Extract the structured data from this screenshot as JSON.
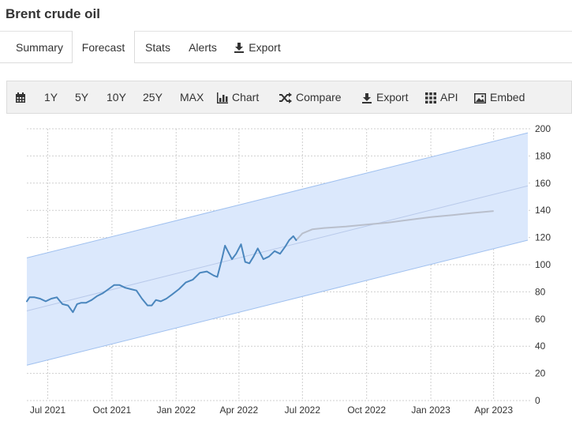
{
  "title": "Brent crude oil",
  "tabs": [
    {
      "label": "Summary",
      "active": false
    },
    {
      "label": "Forecast",
      "active": true
    },
    {
      "label": "Stats",
      "active": false
    },
    {
      "label": "Alerts",
      "active": false
    },
    {
      "label": "Export",
      "active": false,
      "icon": "download-icon"
    }
  ],
  "toolbar": {
    "calendar_icon": "calendar-icon",
    "ranges": [
      "1Y",
      "5Y",
      "10Y",
      "25Y",
      "MAX"
    ],
    "chart_label": "Chart",
    "compare_label": "Compare",
    "export_label": "Export",
    "api_label": "API",
    "embed_label": "Embed"
  },
  "colors": {
    "band": "#dbe8fc",
    "band_edge": "#9fc0ef",
    "history_line": "#4a86bd",
    "forecast_line": "#b9bfcc",
    "trend_line": "#b8c9ea",
    "grid": "#cfcfcf"
  },
  "chart_data": {
    "type": "line",
    "x_ticks": [
      "Jul 2021",
      "Oct 2021",
      "Jan 2022",
      "Apr 2022",
      "Jul 2022",
      "Oct 2022",
      "Jan 2023",
      "Apr 2023"
    ],
    "y_ticks": [
      0,
      20,
      40,
      60,
      80,
      100,
      120,
      140,
      160,
      180,
      200
    ],
    "ylim": [
      0,
      200
    ],
    "grid": true,
    "y_axis_side": "right",
    "history": {
      "x": [
        "2021-06-01",
        "2021-06-05",
        "2021-06-12",
        "2021-06-20",
        "2021-06-28",
        "2021-07-06",
        "2021-07-14",
        "2021-07-22",
        "2021-07-30",
        "2021-08-06",
        "2021-08-12",
        "2021-08-18",
        "2021-08-25",
        "2021-09-02",
        "2021-09-10",
        "2021-09-18",
        "2021-09-26",
        "2021-10-04",
        "2021-10-12",
        "2021-10-20",
        "2021-10-28",
        "2021-11-05",
        "2021-11-13",
        "2021-11-21",
        "2021-11-27",
        "2021-12-03",
        "2021-12-10",
        "2021-12-18",
        "2021-12-26",
        "2022-01-05",
        "2022-01-15",
        "2022-01-25",
        "2022-02-04",
        "2022-02-14",
        "2022-02-24",
        "2022-03-01",
        "2022-03-04",
        "2022-03-08",
        "2022-03-12",
        "2022-03-16",
        "2022-03-22",
        "2022-03-28",
        "2022-04-04",
        "2022-04-10",
        "2022-04-16",
        "2022-04-22",
        "2022-04-28",
        "2022-05-06",
        "2022-05-14",
        "2022-05-22",
        "2022-05-30",
        "2022-06-06",
        "2022-06-12",
        "2022-06-18",
        "2022-06-22"
      ],
      "y": [
        73,
        76,
        76,
        75,
        73,
        75,
        76,
        71,
        70,
        65,
        71,
        72,
        72,
        74,
        77,
        79,
        82,
        85,
        85,
        83,
        82,
        81,
        75,
        70,
        70,
        74,
        73,
        75,
        78,
        82,
        87,
        89,
        94,
        95,
        92,
        91,
        97,
        105,
        114,
        110,
        104,
        108,
        115,
        102,
        101,
        106,
        112,
        104,
        106,
        110,
        108,
        113,
        118,
        121,
        118
      ]
    },
    "forecast": {
      "x": [
        "2022-06-22",
        "2022-07-01",
        "2022-07-15",
        "2022-08-01",
        "2022-09-01",
        "2022-10-01",
        "2022-11-01",
        "2022-12-01",
        "2023-01-01",
        "2023-02-01",
        "2023-03-01",
        "2023-04-01"
      ],
      "y": [
        118,
        123,
        126,
        127,
        128,
        129.5,
        131,
        133,
        135,
        136.5,
        138,
        139.5
      ]
    },
    "band": {
      "start": {
        "x": "2021-06-01",
        "lower": 26,
        "upper": 105
      },
      "end": {
        "x": "2023-05-20",
        "lower": 118,
        "upper": 197
      }
    },
    "trend": {
      "start": {
        "x": "2021-06-01",
        "y": 66
      },
      "end": {
        "x": "2023-05-20",
        "y": 158
      }
    }
  }
}
